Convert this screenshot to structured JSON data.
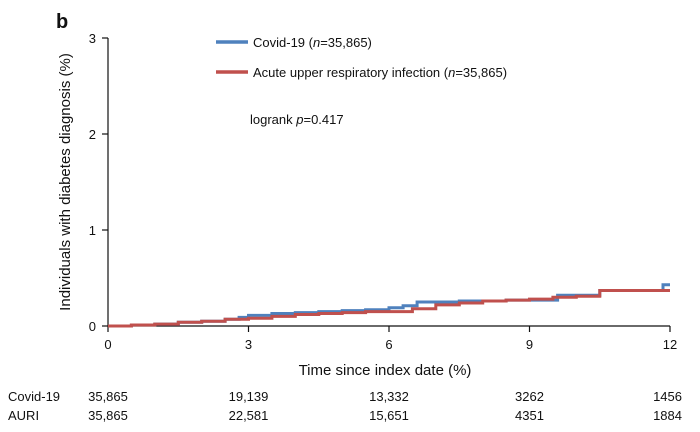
{
  "chart_data": {
    "type": "line",
    "panel_label": "b",
    "xlabel": "Time since index date (%)",
    "ylabel": "Individuals with diabetes diagnosis (%)",
    "xlim": [
      0,
      12
    ],
    "ylim": [
      0,
      3
    ],
    "x_ticks": [
      "0",
      "3",
      "6",
      "9",
      "12"
    ],
    "y_ticks": [
      "0",
      "1",
      "2",
      "3"
    ],
    "grid": false,
    "legend_position": "top",
    "series": [
      {
        "name_prefix": "Covid-19 (",
        "name_italic": "n",
        "name_suffix": "=35,865)",
        "color": "#4f81bd",
        "step": true,
        "x": [
          0,
          0.5,
          1.0,
          1.5,
          2.0,
          2.5,
          2.8,
          3.0,
          3.5,
          4.0,
          4.5,
          5.0,
          5.5,
          6.0,
          6.3,
          6.6,
          7.0,
          7.5,
          8.0,
          8.5,
          9.0,
          9.3,
          9.6,
          10.0,
          10.5,
          11.0,
          11.5,
          11.85,
          12.0
        ],
        "y": [
          0,
          0.01,
          0.02,
          0.04,
          0.05,
          0.07,
          0.09,
          0.11,
          0.13,
          0.14,
          0.15,
          0.16,
          0.17,
          0.19,
          0.21,
          0.25,
          0.25,
          0.26,
          0.26,
          0.27,
          0.27,
          0.27,
          0.32,
          0.32,
          0.37,
          0.37,
          0.37,
          0.43,
          0.43
        ]
      },
      {
        "name_prefix": "Acute upper respiratory infection  (",
        "name_italic": "n",
        "name_suffix": "=35,865)",
        "color": "#c0504d",
        "step": true,
        "x": [
          0,
          0.5,
          1.0,
          1.5,
          2.0,
          2.5,
          3.0,
          3.5,
          4.0,
          4.5,
          5.0,
          5.5,
          6.0,
          6.5,
          7.0,
          7.5,
          8.0,
          8.5,
          9.0,
          9.5,
          10.0,
          10.5,
          11.0,
          11.5,
          12.0
        ],
        "y": [
          0,
          0.01,
          0.02,
          0.04,
          0.05,
          0.07,
          0.08,
          0.1,
          0.12,
          0.13,
          0.14,
          0.15,
          0.15,
          0.18,
          0.22,
          0.24,
          0.26,
          0.27,
          0.28,
          0.3,
          0.31,
          0.37,
          0.37,
          0.37,
          0.37
        ]
      }
    ],
    "annotations": [
      {
        "prefix": "logrank ",
        "italic": "p",
        "suffix": "=0.417"
      }
    ],
    "risk_table": {
      "rows": [
        {
          "label": "Covid-19",
          "values": [
            "35,865",
            "19,139",
            "13,332",
            "3262",
            "1456"
          ]
        },
        {
          "label": "AURI",
          "values": [
            "35,865",
            "22,581",
            "15,651",
            "4351",
            "1884"
          ]
        }
      ]
    }
  }
}
